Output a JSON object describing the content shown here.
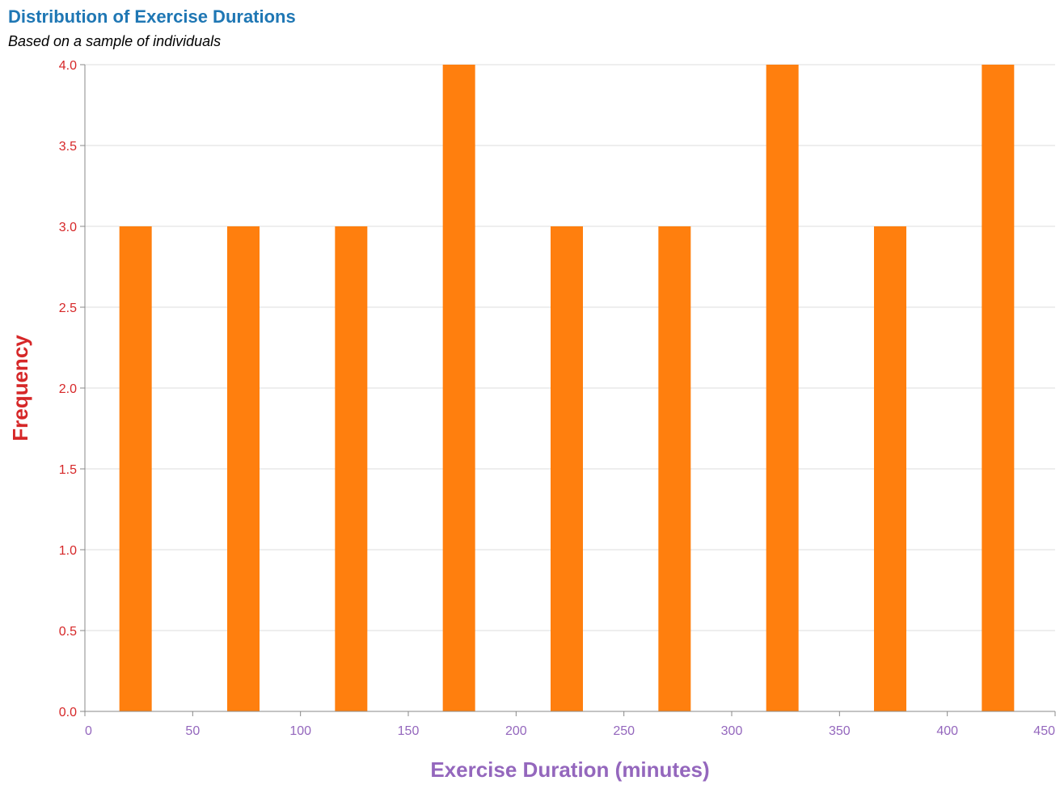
{
  "chart_data": {
    "type": "bar",
    "title": "Distribution of Exercise Durations",
    "subtitle": "Based on a sample of individuals",
    "xlabel": "Exercise Duration (minutes)",
    "ylabel": "Frequency",
    "xlim": [
      0,
      450
    ],
    "ylim": [
      0,
      4
    ],
    "xticks": [
      "0",
      "50",
      "100",
      "150",
      "200",
      "250",
      "300",
      "350",
      "400",
      "450"
    ],
    "yticks": [
      "0.0",
      "0.5",
      "1.0",
      "1.5",
      "2.0",
      "2.5",
      "3.0",
      "3.5",
      "4.0"
    ],
    "grid": true,
    "bars": [
      {
        "x_start": 16,
        "x_end": 31,
        "value": 3
      },
      {
        "x_start": 66,
        "x_end": 81,
        "value": 3
      },
      {
        "x_start": 116,
        "x_end": 131,
        "value": 3
      },
      {
        "x_start": 166,
        "x_end": 181,
        "value": 4
      },
      {
        "x_start": 216,
        "x_end": 231,
        "value": 3
      },
      {
        "x_start": 266,
        "x_end": 281,
        "value": 3
      },
      {
        "x_start": 316,
        "x_end": 331,
        "value": 4
      },
      {
        "x_start": 366,
        "x_end": 381,
        "value": 3
      },
      {
        "x_start": 416,
        "x_end": 431,
        "value": 4
      }
    ],
    "colors": {
      "bar": "#ff7f0e",
      "title": "#1f77b4",
      "y_axis": "#d62728",
      "x_axis": "#9467bd",
      "grid": "#dddddd",
      "axis_line": "#888888"
    }
  }
}
